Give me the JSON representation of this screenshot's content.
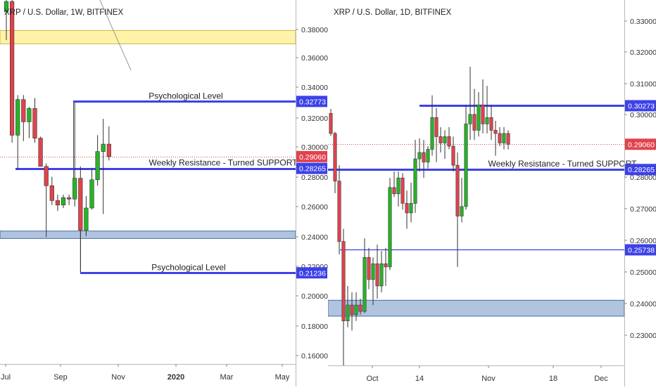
{
  "colors": {
    "up": "#26b526",
    "down": "#e0434d",
    "wick": "#333333",
    "level_line": "#3d41e8",
    "price_line": "#e0434d",
    "support_zone": "#b0c4e0",
    "resistance_zone": "#fff3a8",
    "grid_text": "#333333",
    "badge_text": "#ffffff"
  },
  "chart_data": [
    {
      "type": "candlestick",
      "title": "XRP / U.S. Dollar, 1W, BITFINEX",
      "x_ticks": [
        "Jul",
        "Sep",
        "Nov",
        "2020",
        "Mar",
        "May"
      ],
      "y_ticks": [
        "0.38000",
        "0.36000",
        "0.34000",
        "0.32000",
        "0.30000",
        "0.28000",
        "0.26000",
        "0.24000",
        "0.22000",
        "0.20000",
        "0.18000",
        "0.16000"
      ],
      "ylim": [
        0.151,
        0.396
      ],
      "candles": [
        {
          "o": 0.388,
          "h": 0.415,
          "l": 0.369,
          "c": 0.395
        },
        {
          "o": 0.395,
          "h": 0.398,
          "l": 0.3,
          "c": 0.305
        },
        {
          "o": 0.305,
          "h": 0.332,
          "l": 0.282,
          "c": 0.329
        },
        {
          "o": 0.329,
          "h": 0.332,
          "l": 0.301,
          "c": 0.314
        },
        {
          "o": 0.314,
          "h": 0.324,
          "l": 0.303,
          "c": 0.323
        },
        {
          "o": 0.323,
          "h": 0.33,
          "l": 0.3,
          "c": 0.303
        },
        {
          "o": 0.303,
          "h": 0.304,
          "l": 0.285,
          "c": 0.284
        },
        {
          "o": 0.284,
          "h": 0.286,
          "l": 0.2365,
          "c": 0.271
        },
        {
          "o": 0.271,
          "h": 0.277,
          "l": 0.258,
          "c": 0.261
        },
        {
          "o": 0.261,
          "h": 0.265,
          "l": 0.254,
          "c": 0.258
        },
        {
          "o": 0.258,
          "h": 0.265,
          "l": 0.256,
          "c": 0.263
        },
        {
          "o": 0.263,
          "h": 0.265,
          "l": 0.258,
          "c": 0.262
        },
        {
          "o": 0.262,
          "h": 0.327,
          "l": 0.257,
          "c": 0.276
        },
        {
          "o": 0.276,
          "h": 0.284,
          "l": 0.213,
          "c": 0.241
        },
        {
          "o": 0.241,
          "h": 0.264,
          "l": 0.237,
          "c": 0.256
        },
        {
          "o": 0.256,
          "h": 0.283,
          "l": 0.255,
          "c": 0.275
        },
        {
          "o": 0.275,
          "h": 0.305,
          "l": 0.271,
          "c": 0.294
        },
        {
          "o": 0.294,
          "h": 0.316,
          "l": 0.252,
          "c": 0.299
        },
        {
          "o": 0.299,
          "h": 0.311,
          "l": 0.288,
          "c": 0.2906
        }
      ],
      "levels": [
        {
          "price": 0.32773,
          "label": "Psychological Level",
          "badge": "0.32773"
        },
        {
          "price": 0.28265,
          "label": "Weekly Resistance - Turned SUPPORT",
          "badge": "0.28265"
        },
        {
          "price": 0.21236,
          "label": "Psychological Level",
          "badge": "0.21236"
        }
      ],
      "current_price": {
        "price": 0.2906,
        "badge": "0.29060"
      },
      "zones": [
        {
          "from": 0.3665,
          "to": 0.3755,
          "kind": "resistance"
        },
        {
          "from": 0.2355,
          "to": 0.2405,
          "kind": "support"
        }
      ],
      "grid": false,
      "legend": "none"
    },
    {
      "type": "candlestick",
      "title": "XRP / U.S. Dollar, 1D, BITFINEX",
      "x_ticks": [
        "Oct",
        "14",
        "Nov",
        "18",
        "Dec"
      ],
      "y_ticks": [
        "0.33000",
        "0.32000",
        "0.31000",
        "0.30000",
        "0.28000",
        "0.27000",
        "0.26000",
        "0.25000",
        "0.24000",
        "0.23000"
      ],
      "ylim": [
        0.221,
        0.336
      ],
      "candles": [
        {
          "o": 0.3003,
          "h": 0.3017,
          "l": 0.2932,
          "c": 0.294
        },
        {
          "o": 0.294,
          "h": 0.2945,
          "l": 0.2752,
          "c": 0.279
        },
        {
          "o": 0.279,
          "h": 0.284,
          "l": 0.256,
          "c": 0.26
        },
        {
          "o": 0.26,
          "h": 0.264,
          "l": 0.22,
          "c": 0.235
        },
        {
          "o": 0.235,
          "h": 0.246,
          "l": 0.233,
          "c": 0.24
        },
        {
          "o": 0.24,
          "h": 0.244,
          "l": 0.232,
          "c": 0.237
        },
        {
          "o": 0.237,
          "h": 0.244,
          "l": 0.235,
          "c": 0.24
        },
        {
          "o": 0.24,
          "h": 0.242,
          "l": 0.237,
          "c": 0.238
        },
        {
          "o": 0.238,
          "h": 0.261,
          "l": 0.2375,
          "c": 0.255
        },
        {
          "o": 0.255,
          "h": 0.258,
          "l": 0.245,
          "c": 0.248
        },
        {
          "o": 0.248,
          "h": 0.255,
          "l": 0.24,
          "c": 0.253
        },
        {
          "o": 0.253,
          "h": 0.259,
          "l": 0.242,
          "c": 0.246
        },
        {
          "o": 0.246,
          "h": 0.257,
          "l": 0.244,
          "c": 0.253
        },
        {
          "o": 0.253,
          "h": 0.258,
          "l": 0.246,
          "c": 0.252
        },
        {
          "o": 0.252,
          "h": 0.28,
          "l": 0.251,
          "c": 0.277
        },
        {
          "o": 0.277,
          "h": 0.282,
          "l": 0.274,
          "c": 0.275
        },
        {
          "o": 0.275,
          "h": 0.282,
          "l": 0.271,
          "c": 0.28
        },
        {
          "o": 0.28,
          "h": 0.2815,
          "l": 0.27,
          "c": 0.272
        },
        {
          "o": 0.272,
          "h": 0.276,
          "l": 0.264,
          "c": 0.269
        },
        {
          "o": 0.269,
          "h": 0.2785,
          "l": 0.266,
          "c": 0.272
        },
        {
          "o": 0.272,
          "h": 0.292,
          "l": 0.269,
          "c": 0.286
        },
        {
          "o": 0.286,
          "h": 0.2925,
          "l": 0.282,
          "c": 0.288
        },
        {
          "o": 0.288,
          "h": 0.292,
          "l": 0.28,
          "c": 0.285
        },
        {
          "o": 0.285,
          "h": 0.29,
          "l": 0.283,
          "c": 0.289
        },
        {
          "o": 0.289,
          "h": 0.306,
          "l": 0.287,
          "c": 0.299
        },
        {
          "o": 0.299,
          "h": 0.302,
          "l": 0.285,
          "c": 0.293
        },
        {
          "o": 0.293,
          "h": 0.296,
          "l": 0.288,
          "c": 0.291
        },
        {
          "o": 0.291,
          "h": 0.295,
          "l": 0.286,
          "c": 0.293
        },
        {
          "o": 0.293,
          "h": 0.296,
          "l": 0.289,
          "c": 0.29
        },
        {
          "o": 0.29,
          "h": 0.293,
          "l": 0.282,
          "c": 0.284
        },
        {
          "o": 0.284,
          "h": 0.288,
          "l": 0.252,
          "c": 0.268
        },
        {
          "o": 0.268,
          "h": 0.28,
          "l": 0.266,
          "c": 0.271
        },
        {
          "o": 0.271,
          "h": 0.303,
          "l": 0.27,
          "c": 0.297
        },
        {
          "o": 0.297,
          "h": 0.315,
          "l": 0.292,
          "c": 0.3
        },
        {
          "o": 0.3,
          "h": 0.308,
          "l": 0.292,
          "c": 0.295
        },
        {
          "o": 0.295,
          "h": 0.307,
          "l": 0.293,
          "c": 0.303
        },
        {
          "o": 0.303,
          "h": 0.311,
          "l": 0.294,
          "c": 0.297
        },
        {
          "o": 0.297,
          "h": 0.309,
          "l": 0.294,
          "c": 0.299
        },
        {
          "o": 0.299,
          "h": 0.303,
          "l": 0.292,
          "c": 0.295
        },
        {
          "o": 0.295,
          "h": 0.298,
          "l": 0.287,
          "c": 0.294
        },
        {
          "o": 0.294,
          "h": 0.296,
          "l": 0.29,
          "c": 0.291
        },
        {
          "o": 0.291,
          "h": 0.296,
          "l": 0.289,
          "c": 0.294
        },
        {
          "o": 0.294,
          "h": 0.295,
          "l": 0.289,
          "c": 0.2906
        }
      ],
      "levels": [
        {
          "price": 0.30273,
          "label": "",
          "badge": "0.30273"
        },
        {
          "price": 0.28265,
          "label": "Weekly Resistance - Turned SUPPORT",
          "badge": "0.28265"
        },
        {
          "price": 0.25738,
          "label": "",
          "badge": "0.25738"
        }
      ],
      "current_price": {
        "price": 0.2906,
        "badge": "0.29060"
      },
      "zones": [
        {
          "from": 0.2365,
          "to": 0.2415,
          "kind": "support"
        }
      ],
      "grid": false,
      "legend": "none"
    }
  ]
}
